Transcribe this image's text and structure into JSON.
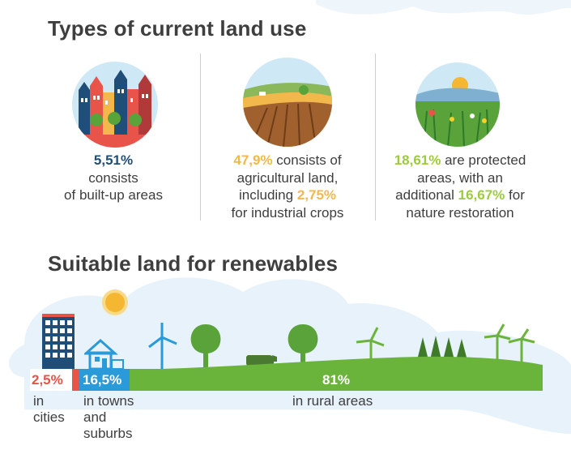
{
  "land_use": {
    "title": "Types of current land use",
    "columns": [
      {
        "icon": "city-houses-icon",
        "pct": "5,51%",
        "line1": "consists",
        "line2": "of built-up areas",
        "color": "#1f4e79"
      },
      {
        "icon": "farmland-icon",
        "pct": "47,9%",
        "line1_rest": " consists of",
        "line2": "agricultural land,",
        "line3_pre": "including ",
        "pct2": "2,75%",
        "line4": "for industrial crops",
        "color": "#f2b84b"
      },
      {
        "icon": "nature-meadow-icon",
        "pct": "18,61%",
        "line1_rest": " are protected",
        "line2": "areas, with an",
        "line3_pre": "additional ",
        "pct2": "16,67%",
        "line3_post": " for",
        "line4": "nature restoration",
        "color": "#9ccc3c"
      }
    ]
  },
  "renewables": {
    "title": "Suitable land for renewables",
    "segments": [
      {
        "value": "2,5%",
        "label_line1": "in",
        "label_line2": "cities",
        "color": "#e8534a",
        "fraction": 0.025
      },
      {
        "value": "16,5%",
        "label_line1": "in towns",
        "label_line2": "and",
        "label_line3": "suburbs",
        "color": "#2b9ad8",
        "fraction": 0.165
      },
      {
        "value": "81%",
        "label_line1": "in rural areas",
        "color": "#6ab43c",
        "fraction": 0.81
      }
    ]
  },
  "colors": {
    "cloud": "#e6f1f9",
    "sun": "#f5b731",
    "tree": "#5aa33a",
    "building_red": "#e8534a",
    "building_blue": "#1f4e79"
  }
}
